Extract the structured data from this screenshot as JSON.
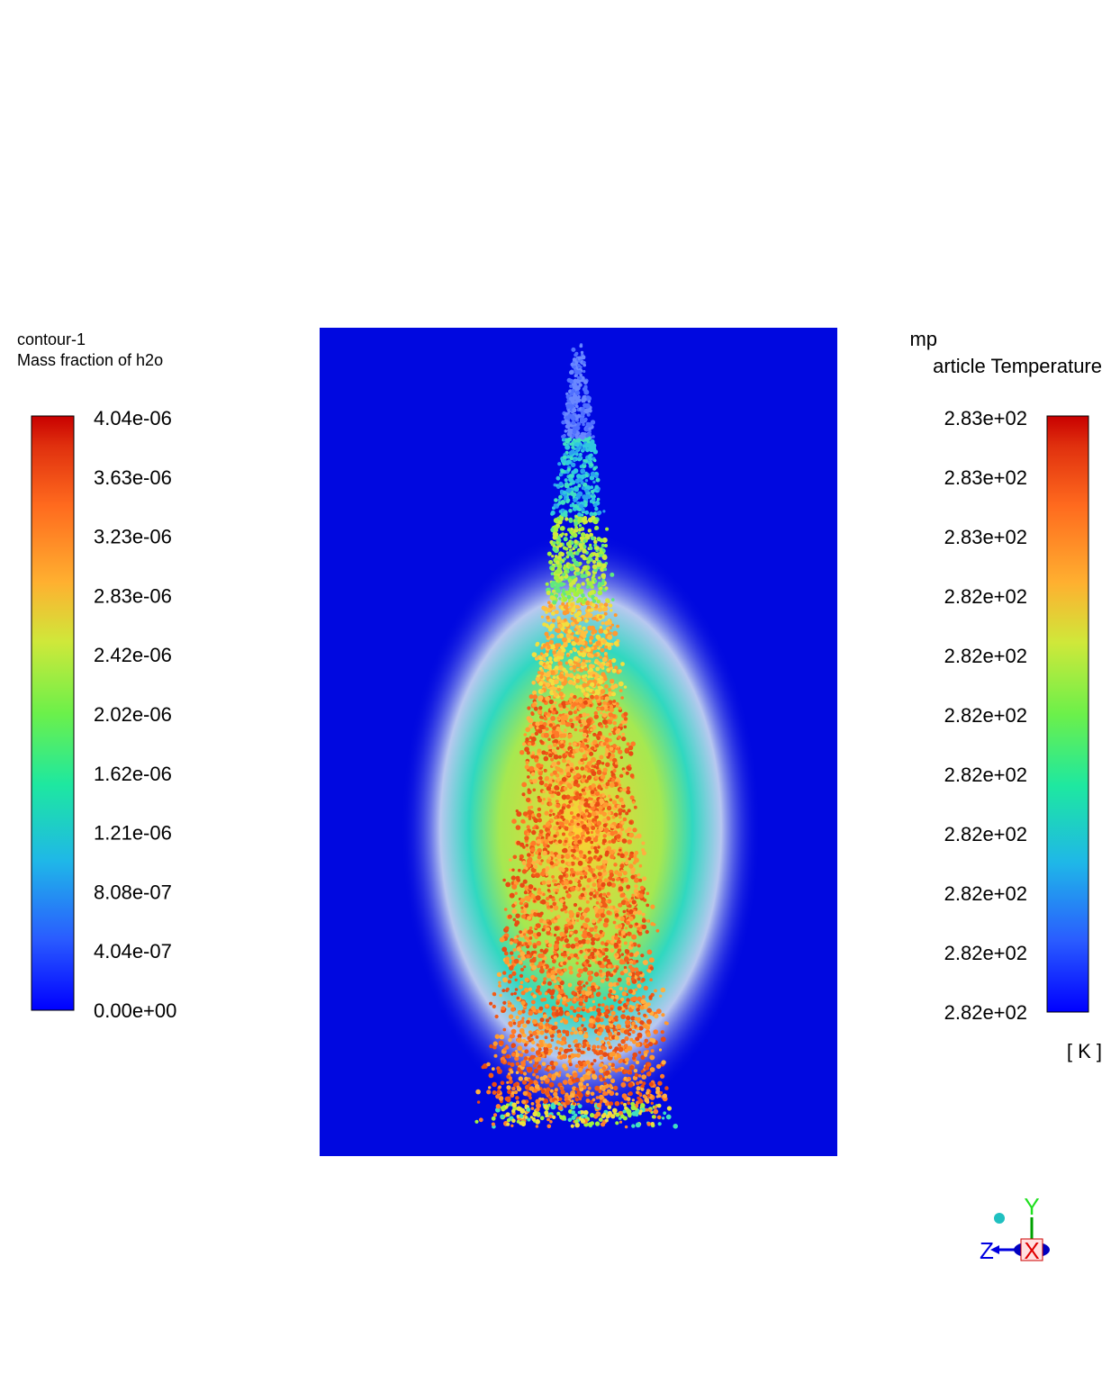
{
  "left_legend": {
    "title": "contour-1",
    "subtitle": "Mass fraction of h2o",
    "tick_labels": [
      "4.04e-06",
      "3.63e-06",
      "3.23e-06",
      "2.83e-06",
      "2.42e-06",
      "2.02e-06",
      "1.62e-06",
      "1.21e-06",
      "8.08e-07",
      "4.04e-07",
      "0.00e+00"
    ]
  },
  "right_legend": {
    "title": "mp",
    "subtitle": "article Temperature",
    "tick_labels": [
      "2.83e+02",
      "2.83e+02",
      "2.83e+02",
      "2.82e+02",
      "2.82e+02",
      "2.82e+02",
      "2.82e+02",
      "2.82e+02",
      "2.82e+02",
      "2.82e+02",
      "2.82e+02"
    ],
    "unit": "[ K ]"
  },
  "axis_triad": {
    "y": "Y",
    "z": "Z",
    "x": "X"
  }
}
